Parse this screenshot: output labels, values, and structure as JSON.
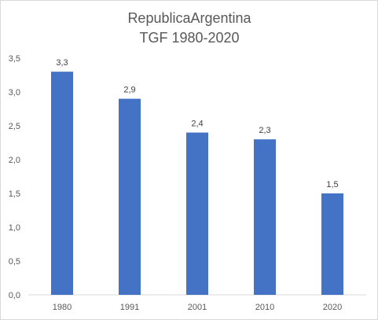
{
  "chart_data": {
    "type": "bar",
    "title": "RepublicaArgentina",
    "subtitle": "TGF 1980-2020",
    "categories": [
      "1980",
      "1991",
      "2001",
      "2010",
      "2020"
    ],
    "values": [
      3.3,
      2.9,
      2.4,
      2.3,
      1.5
    ],
    "value_labels": [
      "3,3",
      "2,9",
      "2,4",
      "2,3",
      "1,5"
    ],
    "y_ticks": [
      "0,0",
      "0,5",
      "1,0",
      "1,5",
      "2,0",
      "2,5",
      "3,0",
      "3,5"
    ],
    "ylim": [
      0,
      3.5
    ],
    "grid": false,
    "legend": "none",
    "bar_color": "#4472c4",
    "xlabel": "",
    "ylabel": ""
  }
}
